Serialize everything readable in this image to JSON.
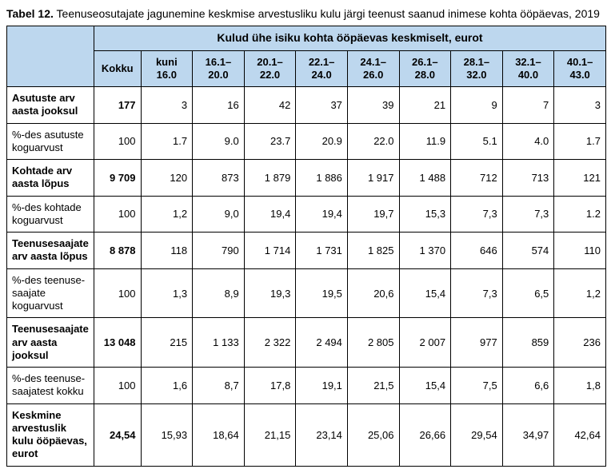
{
  "title_prefix": "Tabel 12.",
  "title_rest": " Teenuseosutajate jagunemine keskmise arvestusliku kulu järgi teenust saanud inimese kohta ööpäevas, 2019",
  "super_header": "Kulud ühe isiku kohta ööpäevas keskmiselt, eurot",
  "col_headers": {
    "kokku": "Kokku",
    "c1": "kuni 16.0",
    "c2": "16.1–20.0",
    "c3": "20.1–22.0",
    "c4": "22.1–24.0",
    "c5": "24.1–26.0",
    "c6": "26.1–28.0",
    "c7": "28.1–32.0",
    "c8": "32.1–40.0",
    "c9": "40.1–43.0"
  },
  "rows": [
    {
      "label": "Asutuste arv aasta jooksul",
      "bold": true,
      "vals": [
        "177",
        "3",
        "16",
        "42",
        "37",
        "39",
        "21",
        "9",
        "7",
        "3"
      ]
    },
    {
      "label": "%-des asutuste koguarvust",
      "bold": false,
      "vals": [
        "100",
        "1.7",
        "9.0",
        "23.7",
        "20.9",
        "22.0",
        "11.9",
        "5.1",
        "4.0",
        "1.7"
      ]
    },
    {
      "label": "Kohtade arv aasta lõpus",
      "bold": true,
      "vals": [
        "9 709",
        "120",
        "873",
        "1 879",
        "1 886",
        "1 917",
        "1 488",
        "712",
        "713",
        "121"
      ]
    },
    {
      "label": "%-des kohtade koguarvust",
      "bold": false,
      "vals": [
        "100",
        "1,2",
        "9,0",
        "19,4",
        "19,4",
        "19,7",
        "15,3",
        "7,3",
        "7,3",
        "1.2"
      ]
    },
    {
      "label": "Teenusesaajate arv aasta lõpus",
      "bold": true,
      "vals": [
        "8 878",
        "118",
        "790",
        "1 714",
        "1 731",
        "1 825",
        "1 370",
        "646",
        "574",
        "110"
      ]
    },
    {
      "label": "%-des teenuse­saajate koguarvust",
      "bold": false,
      "vals": [
        "100",
        "1,3",
        "8,9",
        "19,3",
        "19,5",
        "20,6",
        "15,4",
        "7,3",
        "6,5",
        "1,2"
      ]
    },
    {
      "label": "Teenusesaajate arv aasta jooksul",
      "bold": true,
      "vals": [
        "13 048",
        "215",
        "1 133",
        "2 322",
        "2 494",
        "2 805",
        "2 007",
        "977",
        "859",
        "236"
      ]
    },
    {
      "label": "%-des teenuse­saajatest kokku",
      "bold": false,
      "vals": [
        "100",
        "1,6",
        "8,7",
        "17,8",
        "19,1",
        "21,5",
        "15,4",
        "7,5",
        "6,6",
        "1,8"
      ]
    },
    {
      "label": "Keskmine arvestuslik kulu ööpäevas, eurot",
      "bold": true,
      "vals": [
        "24,54",
        "15,93",
        "18,64",
        "21,15",
        "23,14",
        "25,06",
        "26,66",
        "29,54",
        "34,97",
        "42,64"
      ]
    }
  ]
}
